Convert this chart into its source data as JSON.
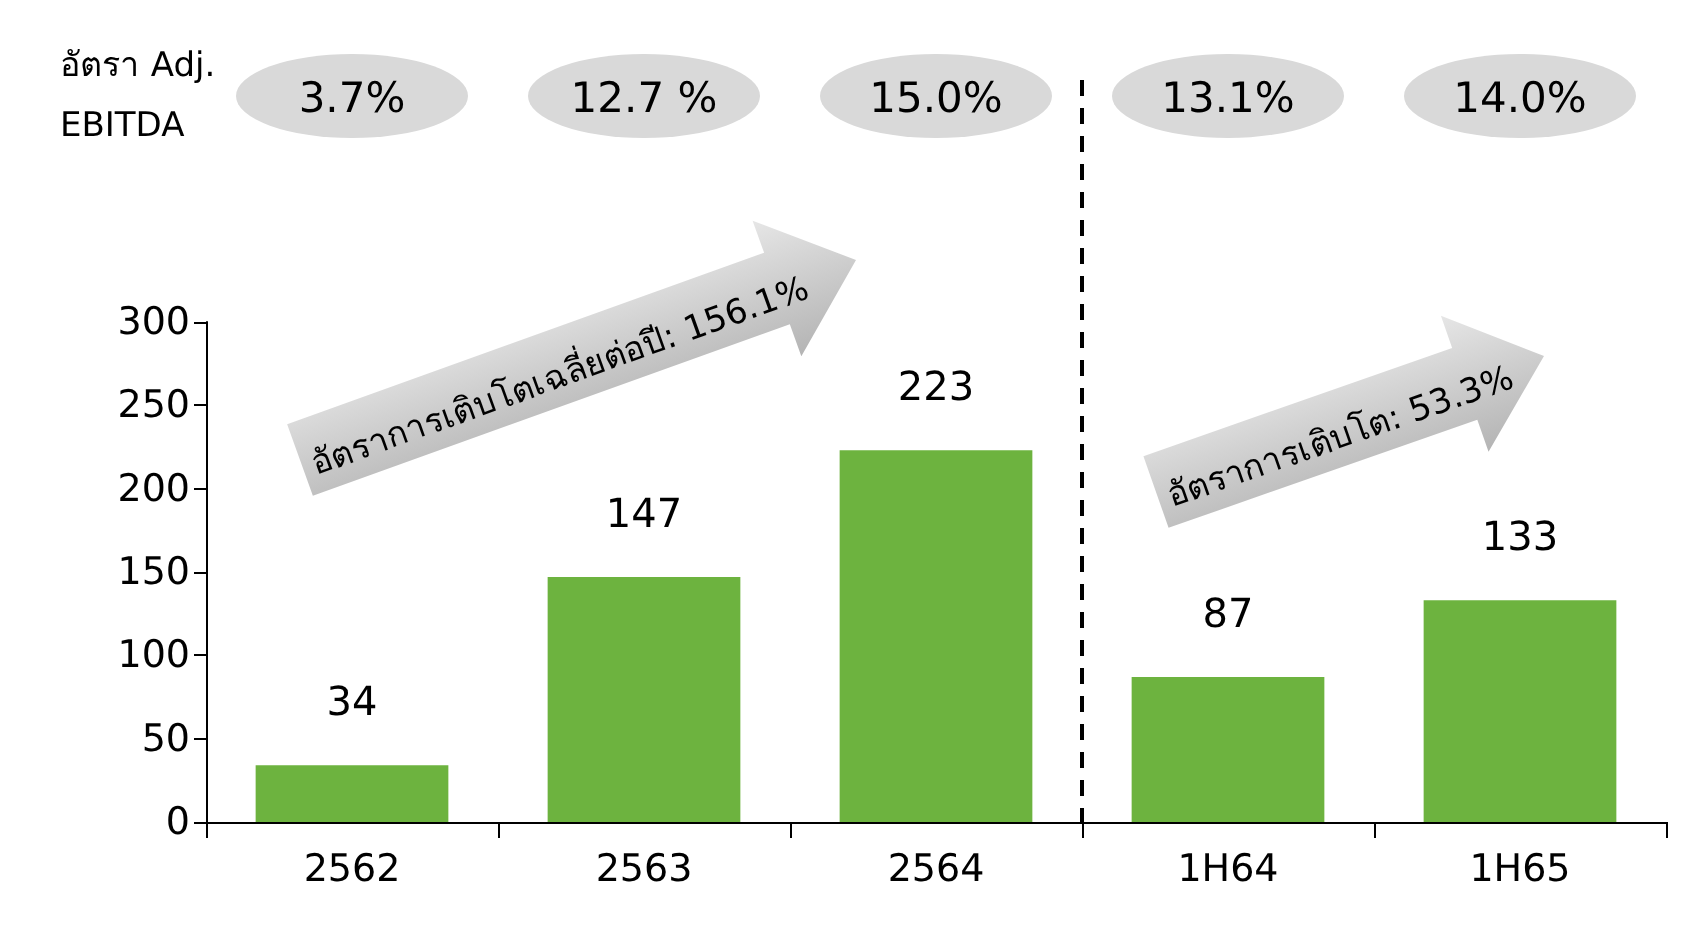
{
  "chart_data": {
    "type": "bar",
    "categories": [
      "2562",
      "2563",
      "2564",
      "1H64",
      "1H65"
    ],
    "values": [
      34,
      147,
      223,
      87,
      133
    ],
    "color": "#6db33f",
    "ylim": [
      0,
      300
    ],
    "yticks": [
      0,
      50,
      100,
      150,
      200,
      250,
      300
    ],
    "grid": false,
    "data_labels": true,
    "annotations": [
      "อัตรา Adj. EBITDA",
      "3.7%",
      "12.7 %",
      "15.0%",
      "13.1%",
      "14.0%",
      "อัตราการเติบโตเฉลี่ยต่อปี: 156.1%",
      "อัตราการเติบโต: 53.3%"
    ]
  }
}
